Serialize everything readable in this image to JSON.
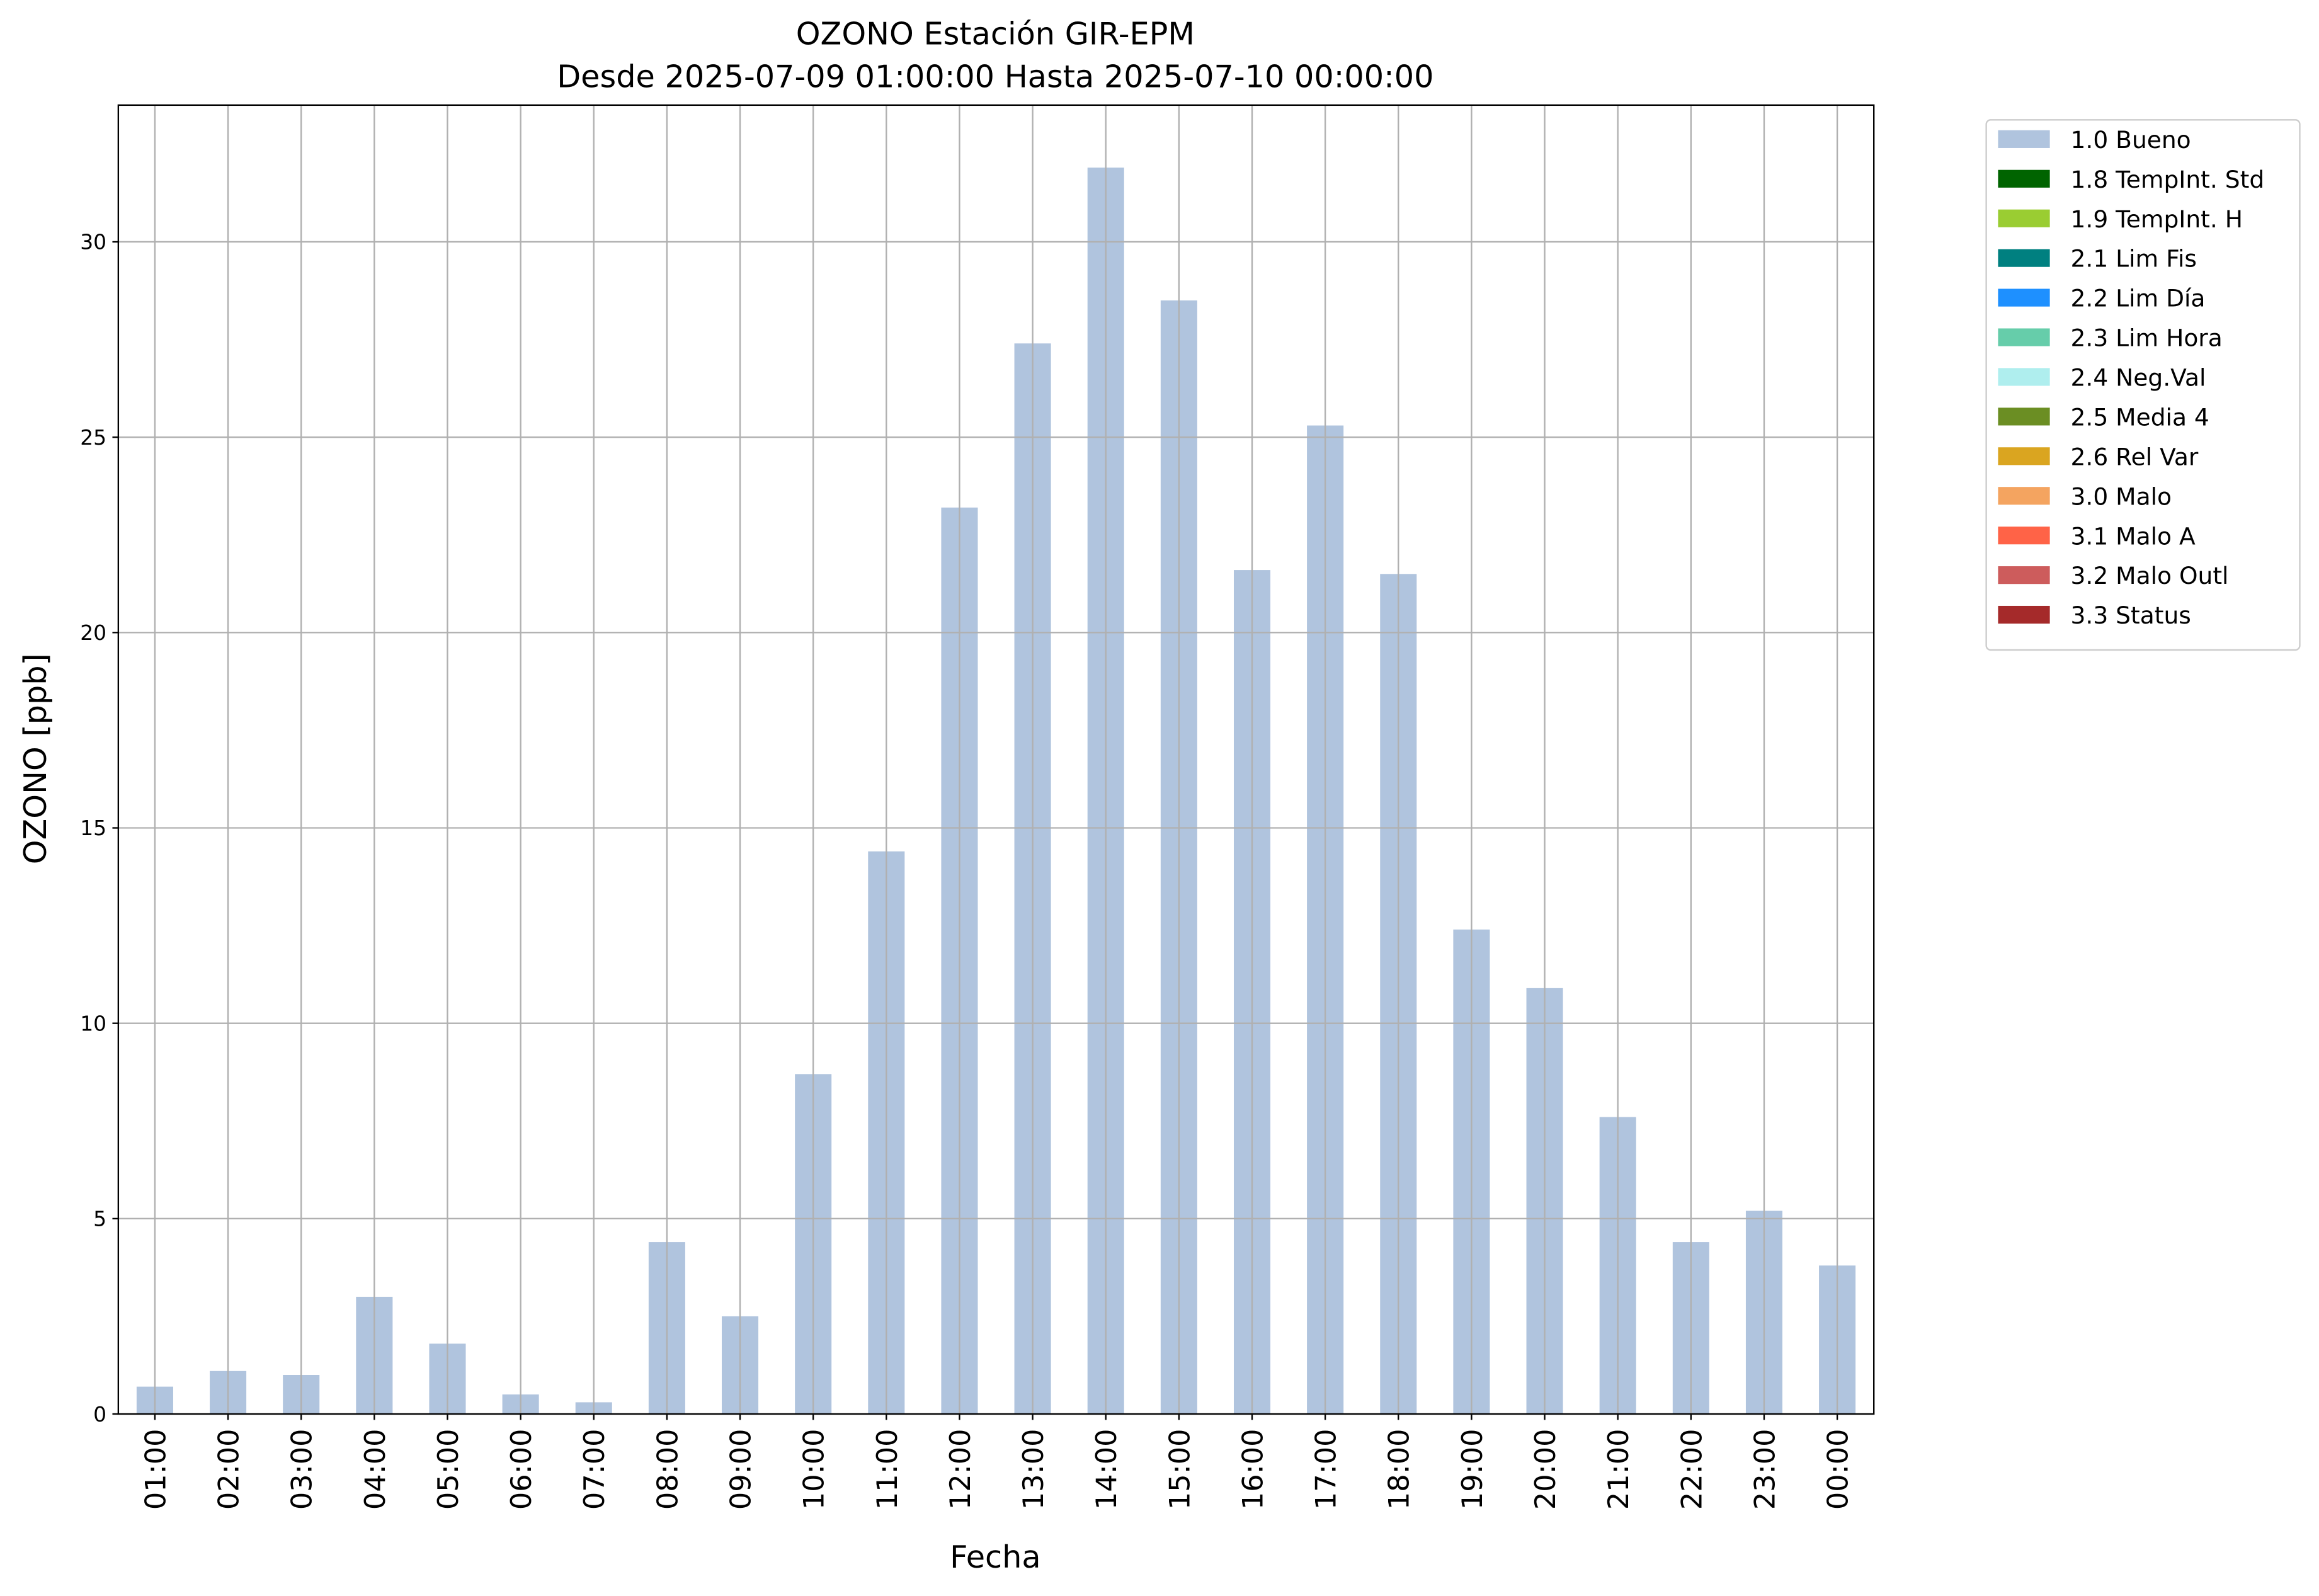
{
  "chart_data": {
    "type": "bar",
    "title": "OZONO Estación GIR-EPM",
    "subtitle": "Desde 2025-07-09 01:00:00 Hasta 2025-07-10 00:00:00",
    "x_label": "Fecha",
    "y_label": "OZONO [ppb]",
    "categories": [
      "01:00",
      "02:00",
      "03:00",
      "04:00",
      "05:00",
      "06:00",
      "07:00",
      "08:00",
      "09:00",
      "10:00",
      "11:00",
      "12:00",
      "13:00",
      "14:00",
      "15:00",
      "16:00",
      "17:00",
      "18:00",
      "19:00",
      "20:00",
      "21:00",
      "22:00",
      "23:00",
      "00:00"
    ],
    "series": [
      {
        "name": "1.0 Bueno",
        "color": "#b0c4de",
        "values": [
          0.7,
          1.1,
          1.0,
          3.0,
          1.8,
          0.5,
          0.3,
          4.4,
          2.5,
          8.7,
          14.4,
          23.2,
          27.4,
          31.9,
          28.5,
          21.6,
          25.3,
          21.5,
          12.4,
          10.9,
          7.6,
          4.4,
          5.2,
          3.8
        ]
      }
    ],
    "legend_entries": [
      {
        "label": "1.8 TempInt. Std",
        "color": "#006400"
      },
      {
        "label": "1.9 TempInt. H",
        "color": "#9acd32"
      },
      {
        "label": "2.1 Lim Fis",
        "color": "#008080"
      },
      {
        "label": "2.2 Lim Día",
        "color": "#1e90ff"
      },
      {
        "label": "2.3 Lim Hora",
        "color": "#66cdaa"
      },
      {
        "label": "2.4 Neg.Val",
        "color": "#afeeee"
      },
      {
        "label": "2.5 Media 4",
        "color": "#6b8e23"
      },
      {
        "label": "2.6 Rel Var",
        "color": "#daa520"
      },
      {
        "label": "3.0 Malo",
        "color": "#f4a460"
      },
      {
        "label": "3.1 Malo A",
        "color": "#ff6347"
      },
      {
        "label": "3.2 Malo Outl",
        "color": "#cd5c5c"
      },
      {
        "label": "3.3 Status",
        "color": "#a52a2a"
      }
    ],
    "ylim": [
      0,
      33.5
    ],
    "yticks": [
      0,
      5,
      10,
      15,
      20,
      25,
      30
    ],
    "grid": true,
    "legend_position": "outside-upper-right"
  }
}
